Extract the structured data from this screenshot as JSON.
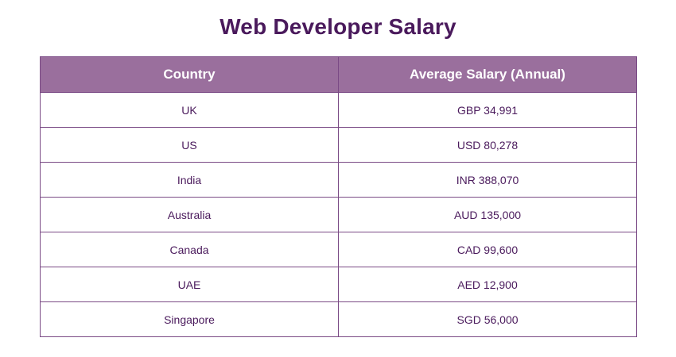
{
  "title": "Web Developer Salary",
  "table": {
    "headers": [
      "Country",
      "Average Salary (Annual)"
    ],
    "rows": [
      [
        "UK",
        "GBP 34,991"
      ],
      [
        "US",
        "USD 80,278"
      ],
      [
        "India",
        "INR 388,070"
      ],
      [
        "Australia",
        "AUD 135,000"
      ],
      [
        "Canada",
        "CAD 99,600"
      ],
      [
        "UAE",
        "AED 12,900"
      ],
      [
        "Singapore",
        "SGD 56,000"
      ]
    ]
  },
  "colors": {
    "title": "#4a1a5c",
    "header_bg": "#9a6f9d",
    "border": "#7a4a85",
    "cell_text": "#4a1a5c"
  }
}
